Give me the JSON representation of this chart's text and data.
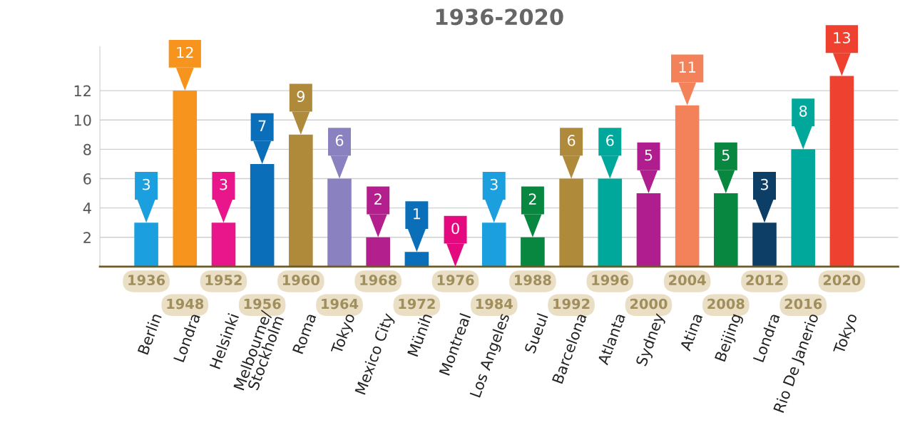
{
  "chart_data": {
    "type": "bar",
    "title": "1936-2020",
    "categories": [
      "1936",
      "1948",
      "1952",
      "1956",
      "1960",
      "1964",
      "1968",
      "1972",
      "1976",
      "1984",
      "1988",
      "1992",
      "1996",
      "2000",
      "2004",
      "2008",
      "2012",
      "2016",
      "2020"
    ],
    "values": [
      3,
      12,
      3,
      7,
      9,
      6,
      2,
      1,
      0,
      3,
      2,
      6,
      6,
      5,
      11,
      5,
      3,
      8,
      13
    ],
    "colors": [
      "#1b9fdf",
      "#f7941d",
      "#e8158b",
      "#0a6fb8",
      "#ae8a3a",
      "#8a82c0",
      "#b31f8c",
      "#0a6fb8",
      "#e5097f",
      "#1b9fdf",
      "#07873f",
      "#ae8a3a",
      "#00a89c",
      "#b01d8e",
      "#f3825a",
      "#07873f",
      "#0c3e66",
      "#00a89c",
      "#ee4130"
    ],
    "ylim": [
      0,
      15
    ],
    "yticks": [
      2,
      4,
      6,
      8,
      10,
      12
    ],
    "grid": "y",
    "data_labels": true,
    "annotations": [
      "Berlin",
      "Londra",
      "Helsinki",
      "Melbourne/\nStockholm",
      "Roma",
      "Tokyo",
      "Mexico City",
      "Münih",
      "Montreal",
      "Los Angeles",
      "Sueul",
      "Barcelona",
      "Atlanta",
      "Sydney",
      "Atina",
      "Beijing",
      "Londra",
      "Rio De Janerio",
      "Tokyo"
    ]
  }
}
